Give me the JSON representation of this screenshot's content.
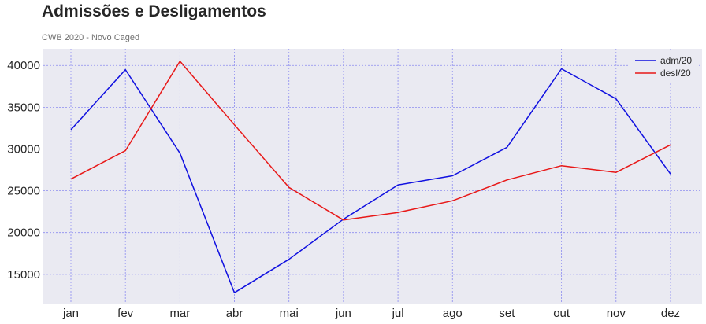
{
  "page": {
    "title": "Admissões e Desligamentos",
    "subtitle": "CWB 2020 - Novo Caged"
  },
  "chart_data": {
    "type": "line",
    "categories": [
      "jan",
      "fev",
      "mar",
      "abr",
      "mai",
      "jun",
      "jul",
      "ago",
      "set",
      "out",
      "nov",
      "dez"
    ],
    "series": [
      {
        "name": "adm/20",
        "color": "#1010e0",
        "values": [
          32300,
          39500,
          29500,
          12800,
          16800,
          21600,
          25700,
          26800,
          30200,
          39600,
          36000,
          27000
        ]
      },
      {
        "name": "desl/20",
        "color": "#e81818",
        "values": [
          26400,
          29800,
          40500,
          32900,
          25400,
          21500,
          22400,
          23800,
          26300,
          28000,
          27200,
          30500
        ]
      }
    ],
    "ylim": [
      11500,
      42000
    ],
    "yticks": [
      15000,
      20000,
      25000,
      30000,
      35000,
      40000
    ],
    "grid": true,
    "grid_color": "#8c8cf0",
    "plot_background": "#eaeaf2",
    "legend_position": "top-right"
  }
}
